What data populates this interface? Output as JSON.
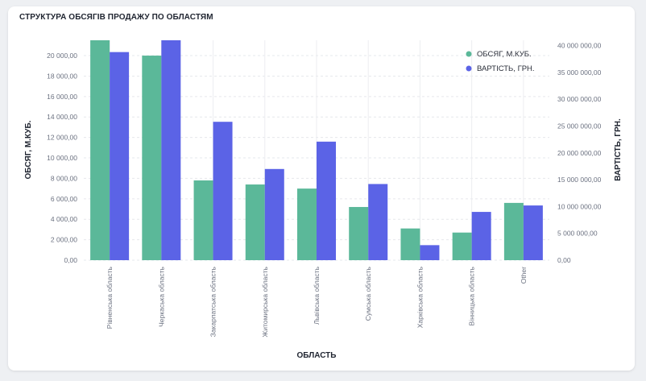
{
  "chart_data": {
    "type": "bar",
    "title": "СТРУКТУРА ОБСЯГІВ ПРОДАЖУ ПО ОБЛАСТЯМ",
    "xlabel": "ОБЛАСТЬ",
    "ylabel_left": "ОБСЯГ, М.КУБ.",
    "ylabel_right": "ВАРТІСТЬ, ГРН.",
    "categories": [
      "Рівненська область",
      "Черкаська область",
      "Закарпатська область",
      "Житомирська область",
      "Львівська область",
      "Сумська область",
      "Харківська область",
      "Вінницька область",
      "Other"
    ],
    "series": [
      {
        "name": "ОБСЯГ, М.КУБ.",
        "axis": "left",
        "color": "#5bb899",
        "values": [
          21500,
          20000,
          7800,
          7400,
          7000,
          5200,
          3100,
          2700,
          5600
        ]
      },
      {
        "name": "ВАРТІСТЬ, ГРН.",
        "axis": "right",
        "color": "#5b63e6",
        "values": [
          38800000,
          41000000,
          25800000,
          17000000,
          22100000,
          14200000,
          2800000,
          9000000,
          10200000
        ]
      }
    ],
    "ylim_left": [
      0,
      21500
    ],
    "ylim_right": [
      0,
      41000000
    ],
    "left_ticks": [
      "0,00",
      "2 000,00",
      "4 000,00",
      "6 000,00",
      "8 000,00",
      "10 000,00",
      "12 000,00",
      "14 000,00",
      "16 000,00",
      "18 000,00",
      "20 000,00"
    ],
    "left_tick_values": [
      0,
      2000,
      4000,
      6000,
      8000,
      10000,
      12000,
      14000,
      16000,
      18000,
      20000
    ],
    "right_ticks": [
      "0,00",
      "5 000 000,00",
      "10 000 000,00",
      "15 000 000,00",
      "20 000 000,00",
      "25 000 000,00",
      "30 000 000,00",
      "35 000 000,00",
      "40 000 000,00"
    ],
    "right_tick_values": [
      0,
      5000000,
      10000000,
      15000000,
      20000000,
      25000000,
      30000000,
      35000000,
      40000000
    ],
    "legend_position": "top-right",
    "grid": true
  }
}
